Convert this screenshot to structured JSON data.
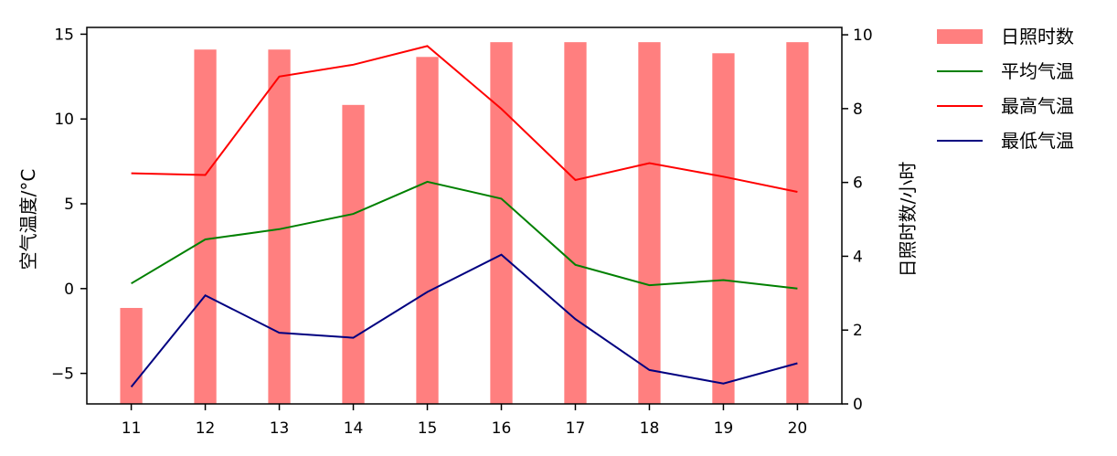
{
  "chart_data": {
    "type": "bar",
    "categories": [
      "11",
      "12",
      "13",
      "14",
      "15",
      "16",
      "17",
      "18",
      "19",
      "20"
    ],
    "bar_series": {
      "name": "日照时数",
      "color": "#ff7f7f",
      "values": [
        2.6,
        9.6,
        9.6,
        8.1,
        9.4,
        9.8,
        9.8,
        9.8,
        9.5,
        9.8
      ]
    },
    "line_series": [
      {
        "name": "平均气温",
        "color": "#008000",
        "values": [
          0.3,
          2.9,
          3.5,
          4.4,
          6.3,
          5.3,
          1.4,
          0.2,
          0.5,
          0.0
        ]
      },
      {
        "name": "最高气温",
        "color": "#ff0000",
        "values": [
          6.8,
          6.7,
          12.5,
          13.2,
          14.3,
          10.6,
          6.4,
          7.4,
          6.6,
          5.7
        ]
      },
      {
        "name": "最低气温",
        "color": "#000080",
        "values": [
          -5.8,
          -0.4,
          -2.6,
          -2.9,
          -0.2,
          2.0,
          -1.8,
          -4.8,
          -5.6,
          -4.4
        ]
      }
    ],
    "ylabel_left": "空气温度/°C",
    "ylabel_right": "日照时数/小时",
    "ylim_left": [
      -6.8,
      15.4
    ],
    "ylim_right": [
      0,
      10.2
    ],
    "yticks_left": [
      -5,
      0,
      5,
      10,
      15
    ],
    "yticks_right": [
      0,
      2,
      4,
      6,
      8,
      10
    ],
    "yticks_left_labels": [
      "−5",
      "0",
      "5",
      "10",
      "15"
    ],
    "yticks_right_labels": [
      "0",
      "2",
      "4",
      "6",
      "8",
      "10"
    ],
    "grid": false,
    "legend": "outside-top-right"
  }
}
